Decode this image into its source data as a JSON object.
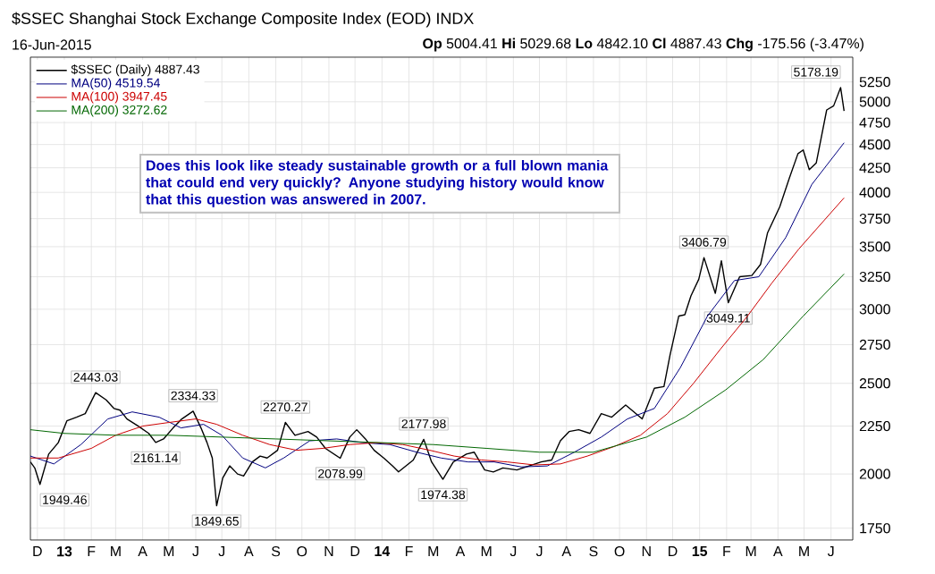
{
  "chart_data": {
    "type": "line",
    "title": "$SSEC Shanghai Stock Exchange Composite Index (EOD) INDX",
    "annotations": [
      "16-Jun-2015",
      "**Op** 5004.41 **Hi** 5029.68 **Lo** 4842.10 **Cl** 4887.43 **Chg** -175.56 (-3.47%)",
      "Does this look like steady sustainable growth or a full blown mania that could end very quickly? Anyone studying history would know that this question was answered in 2007.",
      {
        "text": "1949.46",
        "x": "2012-12-04",
        "y": 1949.46
      },
      {
        "text": "2443.03",
        "x": "2013-02-06",
        "y": 2443.03
      },
      {
        "text": "2161.14",
        "x": "2013-04-16",
        "y": 2161.14
      },
      {
        "text": "2334.33",
        "x": "2013-05-29",
        "y": 2334.33
      },
      {
        "text": "1849.65",
        "x": "2013-06-25",
        "y": 1849.65
      },
      {
        "text": "2270.27",
        "x": "2013-09-12",
        "y": 2270.27
      },
      {
        "text": "2078.99",
        "x": "2013-11-14",
        "y": 2078.99
      },
      {
        "text": "2177.98",
        "x": "2014-02-18",
        "y": 2177.98
      },
      {
        "text": "1974.38",
        "x": "2014-03-12",
        "y": 1974.38
      },
      {
        "text": "3406.79",
        "x": "2015-01-06",
        "y": 3406.79
      },
      {
        "text": "3049.11",
        "x": "2015-02-03",
        "y": 3049.11
      },
      {
        "text": "5178.19",
        "x": "2015-06-12",
        "y": 5178.19
      }
    ],
    "series": [
      {
        "name": "$SSEC (Daily) 4887.43",
        "color": "#000000",
        "x": [
          "2012-11-23",
          "2012-11-28",
          "2012-12-04",
          "2012-12-14",
          "2012-12-25",
          "2013-01-04",
          "2013-01-15",
          "2013-01-25",
          "2013-02-06",
          "2013-02-18",
          "2013-02-27",
          "2013-03-06",
          "2013-03-14",
          "2013-03-27",
          "2013-04-08",
          "2013-04-16",
          "2013-04-25",
          "2013-05-06",
          "2013-05-16",
          "2013-05-29",
          "2013-06-07",
          "2013-06-14",
          "2013-06-20",
          "2013-06-25",
          "2013-07-02",
          "2013-07-10",
          "2013-07-19",
          "2013-07-26",
          "2013-08-05",
          "2013-08-14",
          "2013-08-22",
          "2013-09-03",
          "2013-09-12",
          "2013-09-23",
          "2013-10-08",
          "2013-10-18",
          "2013-10-28",
          "2013-11-14",
          "2013-11-25",
          "2013-12-03",
          "2013-12-13",
          "2013-12-23",
          "2014-01-03",
          "2014-01-13",
          "2014-01-20",
          "2014-02-06",
          "2014-02-18",
          "2014-02-27",
          "2014-03-12",
          "2014-03-24",
          "2014-04-08",
          "2014-04-17",
          "2014-04-29",
          "2014-05-09",
          "2014-05-20",
          "2014-06-05",
          "2014-06-19",
          "2014-07-03",
          "2014-07-15",
          "2014-07-25",
          "2014-08-04",
          "2014-08-15",
          "2014-08-28",
          "2014-09-10",
          "2014-09-22",
          "2014-10-08",
          "2014-10-27",
          "2014-11-10",
          "2014-11-21",
          "2014-11-28",
          "2014-12-08",
          "2014-12-15",
          "2014-12-22",
          "2014-12-31",
          "2015-01-06",
          "2015-01-19",
          "2015-01-26",
          "2015-02-03",
          "2015-02-16",
          "2015-03-02",
          "2015-03-12",
          "2015-03-20",
          "2015-04-03",
          "2015-04-14",
          "2015-04-24",
          "2015-04-30",
          "2015-05-07",
          "2015-05-15",
          "2015-05-27",
          "2015-06-04",
          "2015-06-12",
          "2015-06-16"
        ],
        "values": [
          2060,
          2030,
          1949.46,
          2100,
          2160,
          2280,
          2300,
          2320,
          2443.03,
          2400,
          2350,
          2340,
          2290,
          2250,
          2210,
          2161.14,
          2180,
          2240,
          2290,
          2334.33,
          2240,
          2160,
          2080,
          1849.65,
          1980,
          2040,
          2000,
          1990,
          2060,
          2090,
          2080,
          2120,
          2270.27,
          2200,
          2220,
          2190,
          2130,
          2078.99,
          2190,
          2230,
          2180,
          2120,
          2080,
          2040,
          2010,
          2070,
          2177.98,
          2060,
          1974.38,
          2060,
          2100,
          2110,
          2020,
          2010,
          2030,
          2020,
          2040,
          2060,
          2070,
          2170,
          2220,
          2230,
          2210,
          2320,
          2300,
          2370,
          2290,
          2470,
          2480,
          2680,
          2950,
          2960,
          3100,
          3230,
          3406.79,
          3120,
          3380,
          3049.11,
          3250,
          3260,
          3350,
          3620,
          3860,
          4140,
          4400,
          4440,
          4230,
          4300,
          4900,
          4950,
          5178.19,
          4887.43
        ]
      },
      {
        "name": "MA(50) 4519.54",
        "color": "#000080",
        "x": [
          "2012-11-23",
          "2012-12-20",
          "2013-01-20",
          "2013-02-20",
          "2013-03-20",
          "2013-04-20",
          "2013-05-15",
          "2013-06-10",
          "2013-07-01",
          "2013-07-25",
          "2013-08-20",
          "2013-09-10",
          "2013-10-10",
          "2013-11-10",
          "2013-12-10",
          "2014-01-10",
          "2014-02-10",
          "2014-03-10",
          "2014-04-10",
          "2014-05-10",
          "2014-06-10",
          "2014-07-10",
          "2014-08-10",
          "2014-09-10",
          "2014-10-10",
          "2014-11-10",
          "2014-12-10",
          "2015-01-10",
          "2015-02-10",
          "2015-03-10",
          "2015-04-10",
          "2015-05-10",
          "2015-06-16"
        ],
        "values": [
          2090,
          2050,
          2150,
          2290,
          2330,
          2300,
          2240,
          2260,
          2200,
          2080,
          2030,
          2080,
          2170,
          2180,
          2160,
          2150,
          2110,
          2080,
          2060,
          2060,
          2035,
          2040,
          2110,
          2190,
          2290,
          2350,
          2600,
          2950,
          3220,
          3250,
          3580,
          4080,
          4519.54
        ]
      },
      {
        "name": "MA(100) 3947.45",
        "color": "#cc0000",
        "x": [
          "2012-11-23",
          "2012-12-25",
          "2013-02-01",
          "2013-03-01",
          "2013-04-01",
          "2013-05-01",
          "2013-06-01",
          "2013-06-25",
          "2013-07-25",
          "2013-08-25",
          "2013-09-25",
          "2013-10-25",
          "2013-11-25",
          "2013-12-25",
          "2014-01-25",
          "2014-02-25",
          "2014-03-25",
          "2014-04-25",
          "2014-05-25",
          "2014-06-25",
          "2014-07-25",
          "2014-08-25",
          "2014-09-25",
          "2014-10-25",
          "2014-11-25",
          "2014-12-25",
          "2015-01-25",
          "2015-02-25",
          "2015-03-25",
          "2015-04-25",
          "2015-06-16"
        ],
        "values": [
          2080,
          2080,
          2130,
          2200,
          2250,
          2270,
          2290,
          2260,
          2200,
          2150,
          2120,
          2130,
          2150,
          2160,
          2150,
          2120,
          2090,
          2070,
          2060,
          2045,
          2050,
          2090,
          2140,
          2200,
          2320,
          2500,
          2720,
          2950,
          3200,
          3480,
          3947.45
        ]
      },
      {
        "name": "MA(200) 3272.62",
        "color": "#006600",
        "x": [
          "2012-11-23",
          "2013-01-01",
          "2013-03-01",
          "2013-05-01",
          "2013-07-01",
          "2013-09-01",
          "2013-11-01",
          "2014-01-01",
          "2014-03-01",
          "2014-05-01",
          "2014-07-01",
          "2014-09-01",
          "2014-11-01",
          "2014-12-15",
          "2015-01-31",
          "2015-03-15",
          "2015-04-30",
          "2015-06-16"
        ],
        "values": [
          2230,
          2210,
          2200,
          2200,
          2190,
          2180,
          2170,
          2160,
          2150,
          2130,
          2110,
          2110,
          2190,
          2300,
          2460,
          2650,
          2950,
          3272.62
        ]
      }
    ],
    "xlim": [
      "2012-11-23",
      "2015-06-26"
    ],
    "xticks": [
      {
        "value": "2012-12-01",
        "label": "D"
      },
      {
        "value": "2013-01-01",
        "label": "13"
      },
      {
        "value": "2013-02-01",
        "label": "F"
      },
      {
        "value": "2013-03-01",
        "label": "M"
      },
      {
        "value": "2013-04-01",
        "label": "A"
      },
      {
        "value": "2013-05-01",
        "label": "M"
      },
      {
        "value": "2013-06-01",
        "label": "J"
      },
      {
        "value": "2013-07-01",
        "label": "J"
      },
      {
        "value": "2013-08-01",
        "label": "A"
      },
      {
        "value": "2013-09-01",
        "label": "S"
      },
      {
        "value": "2013-10-01",
        "label": "O"
      },
      {
        "value": "2013-11-01",
        "label": "N"
      },
      {
        "value": "2013-12-01",
        "label": "D"
      },
      {
        "value": "2014-01-01",
        "label": "14"
      },
      {
        "value": "2014-02-01",
        "label": "F"
      },
      {
        "value": "2014-03-01",
        "label": "M"
      },
      {
        "value": "2014-04-01",
        "label": "A"
      },
      {
        "value": "2014-05-01",
        "label": "M"
      },
      {
        "value": "2014-06-01",
        "label": "J"
      },
      {
        "value": "2014-07-01",
        "label": "J"
      },
      {
        "value": "2014-08-01",
        "label": "A"
      },
      {
        "value": "2014-09-01",
        "label": "S"
      },
      {
        "value": "2014-10-01",
        "label": "O"
      },
      {
        "value": "2014-11-01",
        "label": "N"
      },
      {
        "value": "2014-12-01",
        "label": "D"
      },
      {
        "value": "2015-01-01",
        "label": "15"
      },
      {
        "value": "2015-02-01",
        "label": "F"
      },
      {
        "value": "2015-03-01",
        "label": "M"
      },
      {
        "value": "2015-04-01",
        "label": "A"
      },
      {
        "value": "2015-05-01",
        "label": "M"
      },
      {
        "value": "2015-06-01",
        "label": "J"
      }
    ],
    "ylim": [
      1700,
      5580
    ],
    "yticks": [
      1750,
      2000,
      2250,
      2500,
      2750,
      3000,
      3250,
      3500,
      3750,
      4000,
      4250,
      4500,
      4750,
      5000,
      5250
    ],
    "log": true,
    "grid": true,
    "legend": "top left"
  }
}
